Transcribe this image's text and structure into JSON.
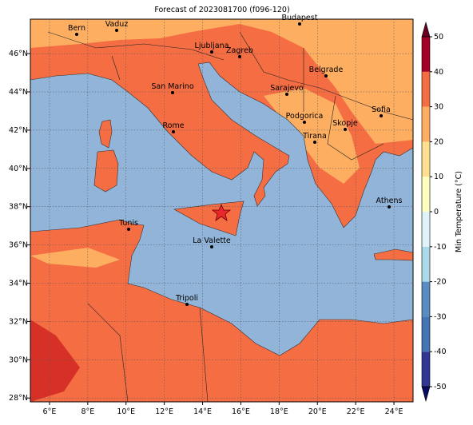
{
  "map": {
    "title": "Forecast of 2023081700 (f096-120)",
    "lonlim": [
      5,
      25
    ],
    "latlim": [
      27.8,
      47.8
    ],
    "lonticks": [
      {
        "value": 6,
        "label": "6°E"
      },
      {
        "value": 8,
        "label": "8°E"
      },
      {
        "value": 10,
        "label": "10°E"
      },
      {
        "value": 12,
        "label": "12°E"
      },
      {
        "value": 14,
        "label": "14°E"
      },
      {
        "value": 16,
        "label": "16°E"
      },
      {
        "value": 18,
        "label": "18°E"
      },
      {
        "value": 20,
        "label": "20°E"
      },
      {
        "value": 22,
        "label": "22°E"
      },
      {
        "value": 24,
        "label": "24°E"
      }
    ],
    "latticks": [
      {
        "value": 28,
        "label": "28°N"
      },
      {
        "value": 30,
        "label": "30°N"
      },
      {
        "value": 32,
        "label": "32°N"
      },
      {
        "value": 34,
        "label": "34°N"
      },
      {
        "value": 36,
        "label": "36°N"
      },
      {
        "value": 38,
        "label": "38°N"
      },
      {
        "value": 40,
        "label": "40°N"
      },
      {
        "value": 42,
        "label": "42°N"
      },
      {
        "value": 44,
        "label": "44°N"
      },
      {
        "value": 46,
        "label": "46°N"
      }
    ],
    "grid": true,
    "cities": [
      "Bern",
      "Vaduz",
      "Budapest",
      "Ljubljana",
      "Zagreb",
      "Belgrade",
      "San Marino",
      "Sarajevo",
      "Podgorica",
      "Sofia",
      "Skopje",
      "Rome",
      "Tirana",
      "Athens",
      "Tunis",
      "La Valette",
      "Tripoli"
    ],
    "colorbar": {
      "label": "Min Temperature (°C)",
      "lim": [
        -50,
        50
      ],
      "ticks": [
        -50,
        -40,
        -30,
        -20,
        -10,
        0,
        10,
        20,
        30,
        40,
        50
      ],
      "colors": [
        "#313695",
        "#4575b4",
        "#5a8cc2",
        "#abd9e9",
        "#e0f3f8",
        "#ffffbf",
        "#fee090",
        "#fdae61",
        "#f46d43",
        "#a50026"
      ],
      "under": "#0a0a60",
      "over": "#67001f"
    }
  }
}
